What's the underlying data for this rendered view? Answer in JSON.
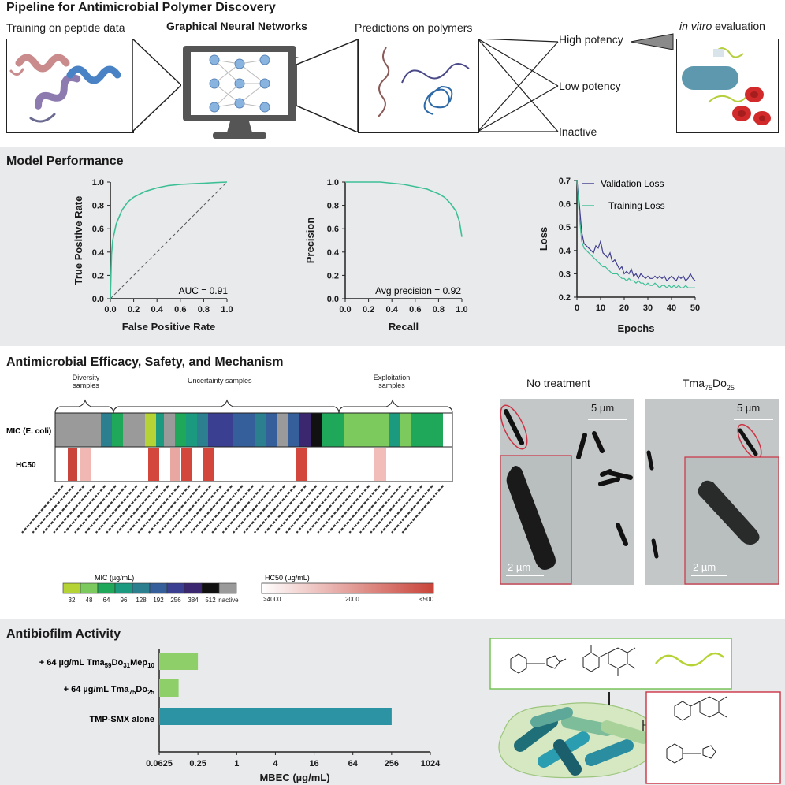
{
  "pipeline": {
    "title": "Pipeline for Antimicrobial Polymer Discovery",
    "step1": "Training on peptide data",
    "step2": "Graphical Neural Networks",
    "step3": "Predictions on polymers",
    "out_high": "High potency",
    "out_low": "Low potency",
    "out_inactive": "Inactive",
    "step4_italic": "in vitro",
    "step4_rest": " evaluation"
  },
  "performance": {
    "title": "Model Performance",
    "roc": {
      "xlabel": "False Positive Rate",
      "ylabel": "True Positive Rate",
      "annotation": "AUC = 0.91",
      "xticks": [
        "0.0",
        "0.2",
        "0.4",
        "0.6",
        "0.8",
        "1.0"
      ],
      "yticks": [
        "0.0",
        "0.2",
        "0.4",
        "0.6",
        "0.8",
        "1.0"
      ]
    },
    "pr": {
      "xlabel": "Recall",
      "ylabel": "Precision",
      "annotation": "Avg precision = 0.92",
      "xticks": [
        "0.0",
        "0.2",
        "0.4",
        "0.6",
        "0.8",
        "1.0"
      ],
      "yticks": [
        "0.0",
        "0.2",
        "0.4",
        "0.6",
        "0.8",
        "1.0"
      ]
    },
    "loss": {
      "xlabel": "Epochs",
      "ylabel": "Loss",
      "legend_val": "Validation Loss",
      "legend_train": "Training Loss",
      "xticks": [
        "0",
        "10",
        "20",
        "30",
        "40",
        "50"
      ],
      "yticks": [
        "0.2",
        "0.3",
        "0.4",
        "0.5",
        "0.6",
        "0.7"
      ]
    }
  },
  "efficacy": {
    "title": "Antimicrobial Efficacy, Safety, and Mechanism",
    "group_diversity": "Diversity samples",
    "group_uncertainty": "Uncertainty samples",
    "group_exploitation": "Exploitation samples",
    "row_mic": "MIC (E. coli)",
    "row_hc": "HC50",
    "mic_legend_title": "MIC (µg/mL)",
    "mic_legend_ticks": [
      "32",
      "48",
      "64",
      "96",
      "128",
      "192",
      "256",
      "384",
      "512",
      "inactive"
    ],
    "hc_legend_title": "HC50 (µg/mL)",
    "hc_legend_ticks": [
      ">4000",
      "2000",
      "<500"
    ],
    "micro_left_title": "No treatment",
    "micro_right_title": "Tma75Do25",
    "scale_5": "5 µm",
    "scale_2": "2 µm",
    "colors": {
      "c32": "#b5d334",
      "c48": "#7cc95d",
      "c64": "#1fa85a",
      "c96": "#1c9a80",
      "c128": "#2b7f8e",
      "c192": "#355f9a",
      "c256": "#3a3f91",
      "c384": "#3b2670",
      "c512": "#111111",
      "inactive": "#9a9a9a"
    }
  },
  "antibiofilm": {
    "title": "Antibiofilm Activity",
    "bar_labels": [
      "+ 64 µg/mL Tma59Do31Mep10",
      "+ 64 µg/mL Tma75Do25",
      "TMP-SMX alone"
    ],
    "xlabel": "MBEC (µg/mL)",
    "xticks": [
      "0.0625",
      "0.25",
      "1",
      "4",
      "16",
      "64",
      "256",
      "1024"
    ]
  },
  "chart_data": [
    {
      "type": "line",
      "x": [
        0,
        0.01,
        0.02,
        0.05,
        0.1,
        0.15,
        0.2,
        0.3,
        0.4,
        0.5,
        0.6,
        0.7,
        0.8,
        0.9,
        1.0
      ],
      "series": [
        {
          "values": [
            0,
            0.38,
            0.5,
            0.64,
            0.76,
            0.83,
            0.87,
            0.92,
            0.95,
            0.97,
            0.98,
            0.985,
            0.99,
            0.995,
            1.0
          ]
        }
      ],
      "xlabel": "False Positive Rate",
      "ylabel": "True Positive Rate",
      "xlim": [
        0,
        1
      ],
      "ylim": [
        0,
        1
      ],
      "annotation": "AUC = 0.91"
    },
    {
      "type": "line",
      "x": [
        0,
        0.1,
        0.2,
        0.3,
        0.4,
        0.5,
        0.6,
        0.7,
        0.8,
        0.85,
        0.9,
        0.95,
        0.98,
        1.0
      ],
      "series": [
        {
          "values": [
            1.0,
            1.0,
            1.0,
            1.0,
            0.99,
            0.98,
            0.96,
            0.94,
            0.9,
            0.87,
            0.82,
            0.75,
            0.66,
            0.53
          ]
        }
      ],
      "xlabel": "Recall",
      "ylabel": "Precision",
      "xlim": [
        0,
        1
      ],
      "ylim": [
        0,
        1
      ],
      "annotation": "Avg precision = 0.92"
    },
    {
      "type": "line",
      "x": [
        0,
        1,
        2,
        3,
        4,
        5,
        6,
        7,
        8,
        9,
        10,
        11,
        12,
        13,
        14,
        15,
        16,
        17,
        18,
        19,
        20,
        21,
        22,
        23,
        24,
        25,
        26,
        27,
        28,
        29,
        30,
        31,
        32,
        33,
        34,
        35,
        36,
        37,
        38,
        39,
        40,
        41,
        42,
        43,
        44,
        45,
        46,
        47,
        48,
        49,
        50
      ],
      "series": [
        {
          "name": "Validation Loss",
          "color": "#3f3d8f",
          "values": [
            0.7,
            0.6,
            0.48,
            0.43,
            0.42,
            0.41,
            0.4,
            0.39,
            0.42,
            0.41,
            0.44,
            0.39,
            0.38,
            0.37,
            0.39,
            0.35,
            0.36,
            0.34,
            0.32,
            0.33,
            0.3,
            0.31,
            0.3,
            0.32,
            0.29,
            0.3,
            0.28,
            0.3,
            0.29,
            0.28,
            0.29,
            0.28,
            0.28,
            0.29,
            0.28,
            0.29,
            0.28,
            0.29,
            0.27,
            0.28,
            0.29,
            0.28,
            0.27,
            0.29,
            0.28,
            0.29,
            0.27,
            0.28,
            0.3,
            0.28,
            0.27
          ]
        },
        {
          "name": "Training Loss",
          "color": "#3dbf96",
          "values": [
            0.7,
            0.55,
            0.44,
            0.41,
            0.4,
            0.39,
            0.38,
            0.37,
            0.36,
            0.35,
            0.34,
            0.33,
            0.33,
            0.32,
            0.31,
            0.3,
            0.3,
            0.3,
            0.29,
            0.28,
            0.28,
            0.27,
            0.28,
            0.27,
            0.27,
            0.26,
            0.27,
            0.26,
            0.26,
            0.25,
            0.26,
            0.25,
            0.25,
            0.26,
            0.25,
            0.24,
            0.25,
            0.25,
            0.24,
            0.25,
            0.24,
            0.25,
            0.24,
            0.25,
            0.24,
            0.24,
            0.25,
            0.24,
            0.24,
            0.24,
            0.24
          ]
        }
      ],
      "xlabel": "Epochs",
      "ylabel": "Loss",
      "xlim": [
        0,
        50
      ],
      "ylim": [
        0.2,
        0.7
      ]
    },
    {
      "type": "bar",
      "orientation": "horizontal",
      "categories": [
        "+ 64 µg/mL Tma59Do31Mep10",
        "+ 64 µg/mL Tma75Do25",
        "TMP-SMX alone"
      ],
      "values": [
        0.25,
        0.125,
        256
      ],
      "xlabel": "MBEC (µg/mL)",
      "xscale": "log2",
      "xlim": [
        0.0625,
        1024
      ]
    }
  ]
}
